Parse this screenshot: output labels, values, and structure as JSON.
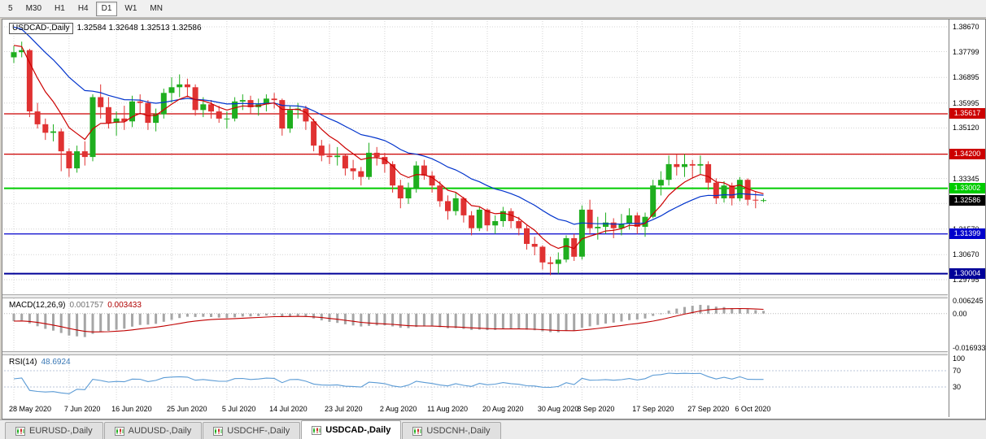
{
  "toolbar": {
    "timeframes": [
      {
        "label": "5",
        "active": false
      },
      {
        "label": "M30",
        "active": false
      },
      {
        "label": "H1",
        "active": false
      },
      {
        "label": "H4",
        "active": false
      },
      {
        "label": "D1",
        "active": true
      },
      {
        "label": "W1",
        "active": false
      },
      {
        "label": "MN",
        "active": false
      }
    ]
  },
  "chart": {
    "title": "USDCAD-,Daily",
    "ohlc": {
      "o": "1.32584",
      "h": "1.32648",
      "l": "1.32513",
      "c": "1.32586"
    },
    "scale": {
      "price_top": 1.3887,
      "price_bottom": 1.2928
    },
    "price_axis_ticks": [
      {
        "label": "1.38670",
        "value": 1.3867
      },
      {
        "label": "1.37799",
        "value": 1.37799
      },
      {
        "label": "1.36895",
        "value": 1.36895
      },
      {
        "label": "1.35995",
        "value": 1.35995
      },
      {
        "label": "1.35120",
        "value": 1.3512
      },
      {
        "label": "1.34195",
        "value": 1.34195
      },
      {
        "label": "1.33345",
        "value": 1.33345
      },
      {
        "label": "1.32470",
        "value": 1.3247
      },
      {
        "label": "1.31570",
        "value": 1.3157
      },
      {
        "label": "1.30670",
        "value": 1.3067
      },
      {
        "label": "1.29795",
        "value": 1.29795
      }
    ],
    "hlines": [
      {
        "label": "1.35617",
        "value": 1.35617,
        "color": "#cc0000",
        "width": 1.3
      },
      {
        "label": "1.34200",
        "value": 1.342,
        "color": "#cc0000",
        "width": 1.3
      },
      {
        "label": "1.33002",
        "value": 1.33002,
        "color": "#00cc00",
        "width": 2
      },
      {
        "label": "1.31399",
        "value": 1.31399,
        "color": "#0000cc",
        "width": 1.3
      },
      {
        "label": "1.30004",
        "value": 1.30004,
        "color": "#000099",
        "width": 2
      }
    ],
    "current_price": {
      "label": "1.32586",
      "value": 1.32586,
      "color": "#000000"
    },
    "x_labels": [
      {
        "label": "28 May 2020",
        "index": 0
      },
      {
        "label": "7 Jun 2020",
        "index": 7
      },
      {
        "label": "16 Jun 2020",
        "index": 13
      },
      {
        "label": "25 Jun 2020",
        "index": 20
      },
      {
        "label": "5 Jul 2020",
        "index": 27
      },
      {
        "label": "14 Jul 2020",
        "index": 33
      },
      {
        "label": "23 Jul 2020",
        "index": 40
      },
      {
        "label": "2 Aug 2020",
        "index": 47
      },
      {
        "label": "11 Aug 2020",
        "index": 53
      },
      {
        "label": "20 Aug 2020",
        "index": 60
      },
      {
        "label": "30 Aug 2020",
        "index": 67
      },
      {
        "label": "8 Sep 2020",
        "index": 72
      },
      {
        "label": "17 Sep 2020",
        "index": 79
      },
      {
        "label": "27 Sep 2020",
        "index": 86
      },
      {
        "label": "6 Oct 2020",
        "index": 92
      }
    ],
    "colors": {
      "up": "#1fae1f",
      "down": "#e03232",
      "ma_fast": "#cc0000",
      "ma_slow": "#0033cc",
      "grid": "#d4d4d4"
    },
    "candles": [
      [
        1.376,
        1.38,
        1.374,
        1.3778
      ],
      [
        1.3778,
        1.3815,
        1.376,
        1.3785
      ],
      [
        1.3785,
        1.379,
        1.355,
        1.357
      ],
      [
        1.357,
        1.36,
        1.351,
        1.3525
      ],
      [
        1.3525,
        1.3545,
        1.347,
        1.3495
      ],
      [
        1.3495,
        1.3525,
        1.3465,
        1.35
      ],
      [
        1.35,
        1.351,
        1.336,
        1.343
      ],
      [
        1.343,
        1.344,
        1.334,
        1.337
      ],
      [
        1.337,
        1.345,
        1.3355,
        1.343
      ],
      [
        1.343,
        1.3465,
        1.338,
        1.341
      ],
      [
        1.341,
        1.363,
        1.3395,
        1.362
      ],
      [
        1.362,
        1.3665,
        1.3545,
        1.3585
      ],
      [
        1.3585,
        1.362,
        1.351,
        1.353
      ],
      [
        1.353,
        1.357,
        1.3485,
        1.3545
      ],
      [
        1.3545,
        1.359,
        1.3505,
        1.3535
      ],
      [
        1.3535,
        1.3625,
        1.3515,
        1.3605
      ],
      [
        1.3605,
        1.363,
        1.3565,
        1.36
      ],
      [
        1.36,
        1.361,
        1.3505,
        1.353
      ],
      [
        1.353,
        1.358,
        1.35,
        1.356
      ],
      [
        1.356,
        1.365,
        1.3545,
        1.3635
      ],
      [
        1.3635,
        1.369,
        1.36,
        1.3655
      ],
      [
        1.3655,
        1.37,
        1.362,
        1.3665
      ],
      [
        1.3665,
        1.3685,
        1.362,
        1.3655
      ],
      [
        1.3655,
        1.3665,
        1.3555,
        1.3575
      ],
      [
        1.3575,
        1.362,
        1.355,
        1.3595
      ],
      [
        1.3595,
        1.361,
        1.3545,
        1.357
      ],
      [
        1.357,
        1.359,
        1.353,
        1.3545
      ],
      [
        1.3545,
        1.357,
        1.351,
        1.3545
      ],
      [
        1.3545,
        1.362,
        1.3535,
        1.3605
      ],
      [
        1.3605,
        1.363,
        1.3575,
        1.361
      ],
      [
        1.361,
        1.3625,
        1.356,
        1.3585
      ],
      [
        1.3585,
        1.3615,
        1.3555,
        1.3595
      ],
      [
        1.3595,
        1.363,
        1.357,
        1.3615
      ],
      [
        1.3615,
        1.3635,
        1.358,
        1.361
      ],
      [
        1.361,
        1.3615,
        1.3485,
        1.351
      ],
      [
        1.351,
        1.359,
        1.3495,
        1.3575
      ],
      [
        1.3575,
        1.36,
        1.3545,
        1.358
      ],
      [
        1.358,
        1.359,
        1.3505,
        1.3535
      ],
      [
        1.3535,
        1.3545,
        1.343,
        1.345
      ],
      [
        1.345,
        1.347,
        1.3395,
        1.3415
      ],
      [
        1.3415,
        1.3455,
        1.3385,
        1.341
      ],
      [
        1.341,
        1.3445,
        1.338,
        1.3415
      ],
      [
        1.3415,
        1.342,
        1.3345,
        1.337
      ],
      [
        1.337,
        1.34,
        1.333,
        1.336
      ],
      [
        1.336,
        1.3375,
        1.331,
        1.334
      ],
      [
        1.334,
        1.346,
        1.333,
        1.3425
      ],
      [
        1.3425,
        1.3445,
        1.338,
        1.341
      ],
      [
        1.341,
        1.3425,
        1.3355,
        1.3385
      ],
      [
        1.3385,
        1.3395,
        1.3285,
        1.331
      ],
      [
        1.331,
        1.333,
        1.323,
        1.3265
      ],
      [
        1.3265,
        1.332,
        1.3245,
        1.33
      ],
      [
        1.33,
        1.3395,
        1.3285,
        1.338
      ],
      [
        1.338,
        1.34,
        1.333,
        1.3345
      ],
      [
        1.3345,
        1.336,
        1.3285,
        1.331
      ],
      [
        1.331,
        1.3325,
        1.3235,
        1.3255
      ],
      [
        1.3255,
        1.3275,
        1.319,
        1.322
      ],
      [
        1.322,
        1.3285,
        1.3205,
        1.3265
      ],
      [
        1.3265,
        1.327,
        1.318,
        1.3205
      ],
      [
        1.3205,
        1.322,
        1.3135,
        1.316
      ],
      [
        1.316,
        1.3235,
        1.315,
        1.3225
      ],
      [
        1.3225,
        1.323,
        1.315,
        1.317
      ],
      [
        1.317,
        1.3205,
        1.314,
        1.3185
      ],
      [
        1.3185,
        1.3235,
        1.3165,
        1.322
      ],
      [
        1.322,
        1.323,
        1.316,
        1.3185
      ],
      [
        1.3185,
        1.32,
        1.3135,
        1.316
      ],
      [
        1.316,
        1.317,
        1.3085,
        1.3105
      ],
      [
        1.3105,
        1.313,
        1.3065,
        1.3095
      ],
      [
        1.3095,
        1.31,
        1.3015,
        1.304
      ],
      [
        1.304,
        1.306,
        1.2995,
        1.3035
      ],
      [
        1.3035,
        1.3075,
        1.3,
        1.305
      ],
      [
        1.305,
        1.3135,
        1.304,
        1.3125
      ],
      [
        1.3125,
        1.314,
        1.3045,
        1.306
      ],
      [
        1.306,
        1.324,
        1.305,
        1.3225
      ],
      [
        1.3225,
        1.326,
        1.314,
        1.316
      ],
      [
        1.316,
        1.32,
        1.312,
        1.3165
      ],
      [
        1.3165,
        1.3215,
        1.314,
        1.318
      ],
      [
        1.318,
        1.3195,
        1.3125,
        1.316
      ],
      [
        1.316,
        1.321,
        1.3135,
        1.3175
      ],
      [
        1.3175,
        1.323,
        1.3155,
        1.3205
      ],
      [
        1.3205,
        1.3215,
        1.314,
        1.3165
      ],
      [
        1.3165,
        1.3215,
        1.313,
        1.32
      ],
      [
        1.32,
        1.333,
        1.3195,
        1.331
      ],
      [
        1.331,
        1.336,
        1.3275,
        1.333
      ],
      [
        1.333,
        1.3415,
        1.331,
        1.3385
      ],
      [
        1.3385,
        1.3418,
        1.3345,
        1.3375
      ],
      [
        1.3375,
        1.342,
        1.334,
        1.3385
      ],
      [
        1.3385,
        1.34,
        1.3335,
        1.338
      ],
      [
        1.338,
        1.3415,
        1.335,
        1.3385
      ],
      [
        1.3385,
        1.3395,
        1.3295,
        1.332
      ],
      [
        1.332,
        1.3335,
        1.3245,
        1.3265
      ],
      [
        1.3265,
        1.3325,
        1.325,
        1.331
      ],
      [
        1.331,
        1.332,
        1.324,
        1.3265
      ],
      [
        1.3265,
        1.334,
        1.3255,
        1.333
      ],
      [
        1.333,
        1.3335,
        1.324,
        1.326
      ],
      [
        1.326,
        1.329,
        1.323,
        1.3258
      ],
      [
        1.32584,
        1.32648,
        1.32513,
        1.32586
      ]
    ]
  },
  "macd": {
    "label": "MACD(12,26,9)",
    "value_main": "0.001757",
    "value_signal": "0.003433",
    "axis": [
      {
        "label": "0.006245",
        "value": 0.006245
      },
      {
        "label": "0.00",
        "value": 0
      },
      {
        "label": "-0.016933",
        "value": -0.016933
      }
    ],
    "range_max": 0.0075,
    "range_min": -0.0185,
    "colors": {
      "histogram": "#a6a6a6",
      "signal": "#c00000"
    }
  },
  "rsi": {
    "label": "RSI(14)",
    "value": "48.6924",
    "axis": [
      {
        "label": "100",
        "value": 100
      },
      {
        "label": "70",
        "value": 70
      },
      {
        "label": "30",
        "value": 30
      }
    ],
    "levels": [
      70,
      30
    ],
    "color": "#5b9bd5"
  },
  "tabs": [
    {
      "label": "EURUSD-,Daily",
      "active": false
    },
    {
      "label": "AUDUSD-,Daily",
      "active": false
    },
    {
      "label": "USDCHF-,Daily",
      "active": false
    },
    {
      "label": "USDCAD-,Daily",
      "active": true
    },
    {
      "label": "USDCNH-,Daily",
      "active": false
    }
  ]
}
